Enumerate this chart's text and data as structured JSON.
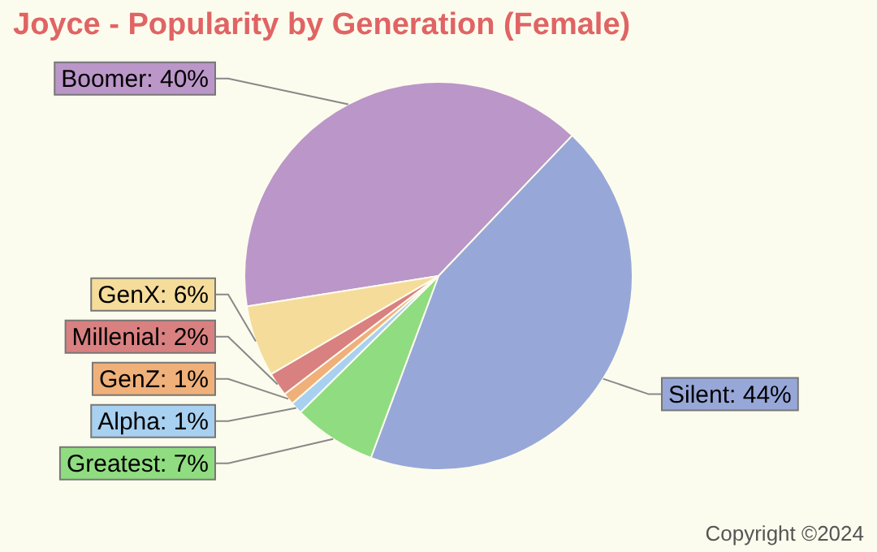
{
  "chart_data": {
    "type": "pie",
    "title": "Joyce - Popularity by Generation (Female)",
    "categories": [
      "Boomer",
      "Silent",
      "Greatest",
      "Alpha",
      "GenZ",
      "Millenial",
      "GenX"
    ],
    "values": [
      40,
      44,
      7,
      1,
      1,
      2,
      6
    ],
    "value_labels": [
      "40%",
      "44%",
      "7%",
      "1%",
      "1%",
      "2%",
      "6%"
    ],
    "colors": [
      "#bb96c8",
      "#97a7d8",
      "#90dc80",
      "#a8d0f0",
      "#f0b07a",
      "#d98080",
      "#f5dc9a"
    ],
    "legend": false,
    "annotations": [
      "Copyright ©2024"
    ]
  }
}
